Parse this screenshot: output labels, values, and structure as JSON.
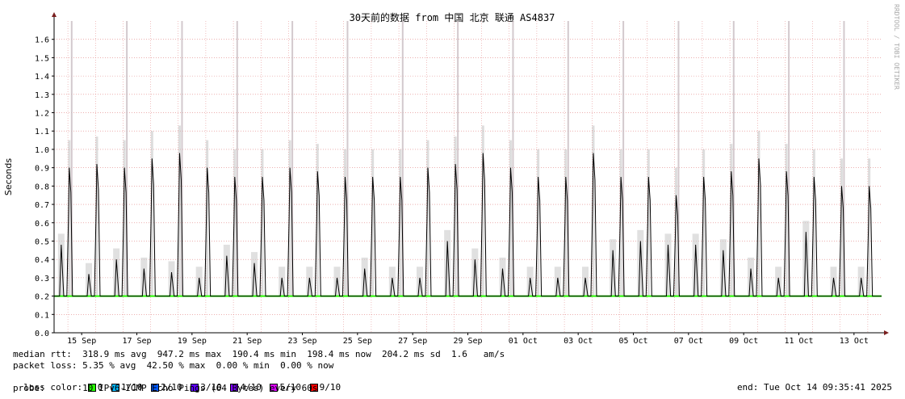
{
  "chart_data": {
    "type": "line",
    "title": "30天前的数据 from 中国 北京 联通 AS4837",
    "ylabel": "Seconds",
    "watermark": "RRDTOOL / TOBI OETIKER",
    "ylim": [
      0,
      1.7
    ],
    "yticks": [
      "0.0",
      "0.1",
      "0.2",
      "0.3",
      "0.4",
      "0.5",
      "0.6",
      "0.7",
      "0.8",
      "0.9",
      "1.0",
      "1.1",
      "1.2",
      "1.3",
      "1.4",
      "1.5",
      "1.6"
    ],
    "xticks": [
      "15 Sep",
      "17 Sep",
      "19 Sep",
      "21 Sep",
      "23 Sep",
      "25 Sep",
      "27 Sep",
      "29 Sep",
      "01 Oct",
      "03 Oct",
      "05 Oct",
      "07 Oct",
      "09 Oct",
      "11 Oct",
      "13 Oct"
    ],
    "grid": true,
    "x_days": 30,
    "baseline": 0.2,
    "daily_peaks": [
      0.9,
      0.92,
      0.9,
      0.95,
      0.98,
      0.9,
      0.85,
      0.85,
      0.9,
      0.88,
      0.85,
      0.85,
      0.85,
      0.9,
      0.92,
      0.98,
      0.9,
      0.85,
      0.85,
      0.98,
      0.85,
      0.85,
      0.75,
      0.85,
      0.88,
      0.95,
      0.88,
      0.85,
      0.8,
      0.8
    ],
    "secondary_peaks": [
      0.48,
      0.32,
      0.4,
      0.35,
      0.33,
      0.3,
      0.42,
      0.38,
      0.3,
      0.3,
      0.3,
      0.35,
      0.3,
      0.3,
      0.5,
      0.4,
      0.35,
      0.3,
      0.3,
      0.3,
      0.45,
      0.5,
      0.48,
      0.48,
      0.45,
      0.35,
      0.3,
      0.55,
      0.3,
      0.3
    ]
  },
  "stats": {
    "median_rtt": "median rtt:  318.9 ms avg  947.2 ms max  190.4 ms min  198.4 ms now  204.2 ms sd  1.6   am/s",
    "packet_loss": "packet loss: 5.35 % avg  42.50 % max  0.00 % min  0.00 % now",
    "loss_color_label": "loss color:",
    "loss_colors": [
      {
        "label": "0",
        "color": "#26ff00"
      },
      {
        "label": "1/10",
        "color": "#00b8ff"
      },
      {
        "label": "2/10",
        "color": "#0059ff"
      },
      {
        "label": "3/10",
        "color": "#5e00ff"
      },
      {
        "label": "4/10",
        "color": "#7e00ff"
      },
      {
        "label": "5/10",
        "color": "#dd00ff"
      },
      {
        "label": "9/10",
        "color": "#ff0000"
      }
    ],
    "probe": "probe:       10 IPv6-ICMP Echo Pings (64 Bytes) every 60s",
    "end": "end: Tue Oct 14 09:35:41 2025"
  }
}
